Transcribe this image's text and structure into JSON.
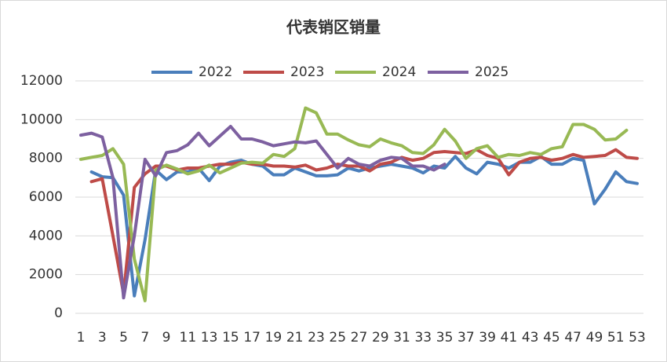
{
  "chart_data": {
    "type": "line",
    "title": "代表销区销量",
    "categories": [
      1,
      null,
      3,
      null,
      5,
      null,
      7,
      null,
      9,
      null,
      11,
      null,
      13,
      null,
      15,
      null,
      17,
      null,
      19,
      null,
      21,
      null,
      23,
      null,
      25,
      null,
      27,
      null,
      29,
      null,
      31,
      null,
      33,
      null,
      35,
      null,
      37,
      null,
      39,
      null,
      41,
      null,
      43,
      null,
      45,
      null,
      47,
      null,
      49,
      null,
      51,
      null,
      53
    ],
    "series": [
      {
        "name": "2022",
        "color": "#4a7ebb",
        "values": [
          null,
          7300,
          7050,
          7000,
          6100,
          900,
          3800,
          7400,
          6900,
          7300,
          7300,
          7500,
          6850,
          7600,
          7800,
          7900,
          7700,
          7600,
          7150,
          7150,
          7500,
          7300,
          7100,
          7100,
          7150,
          7500,
          7350,
          7500,
          7600,
          7700,
          7600,
          7500,
          7250,
          7600,
          7500,
          8100,
          7500,
          7200,
          7800,
          7700,
          7500,
          7800,
          7800,
          8100,
          7700,
          7700,
          8000,
          7900,
          5650,
          6400,
          7300,
          6800,
          6700
        ]
      },
      {
        "name": "2023",
        "color": "#be4b48",
        "values": [
          null,
          6800,
          6950,
          4000,
          1000,
          6500,
          7200,
          7600,
          7600,
          7400,
          7500,
          7500,
          7600,
          7700,
          7700,
          7800,
          7700,
          7700,
          7600,
          7600,
          7550,
          7650,
          7400,
          7500,
          7700,
          7600,
          7600,
          7350,
          7700,
          7800,
          8050,
          7900,
          8000,
          8300,
          8350,
          8300,
          8250,
          8450,
          8150,
          8000,
          7150,
          7800,
          8000,
          8050,
          7900,
          8000,
          8200,
          8050,
          8100,
          8150,
          8450,
          8050,
          8000
        ]
      },
      {
        "name": "2024",
        "color": "#98b954",
        "values": [
          7950,
          8050,
          8150,
          8500,
          7700,
          2800,
          650,
          7400,
          7650,
          7450,
          7200,
          7350,
          7650,
          7250,
          7500,
          7750,
          7800,
          7750,
          8200,
          8100,
          8500,
          10600,
          10350,
          9250,
          9250,
          8950,
          8700,
          8600,
          9000,
          8800,
          8650,
          8300,
          8250,
          8700,
          9500,
          8900,
          8000,
          8500,
          8650,
          8050,
          8200,
          8150,
          8300,
          8200,
          8500,
          8600,
          9750,
          9750,
          9500,
          8950,
          9000,
          9450,
          null
        ]
      },
      {
        "name": "2025",
        "color": "#7d60a0",
        "values": [
          9200,
          9300,
          9100,
          7000,
          800,
          4000,
          7950,
          7100,
          8300,
          8400,
          8700,
          9300,
          8650,
          9150,
          9650,
          9000,
          9000,
          8850,
          8650,
          8750,
          8850,
          8800,
          8900,
          8200,
          7500,
          8000,
          7700,
          7600,
          7900,
          8050,
          8000,
          7600,
          7600,
          7400,
          7700,
          null,
          null,
          null,
          null,
          null,
          null,
          null,
          null,
          null,
          null,
          null,
          null,
          null,
          null,
          null,
          null,
          null,
          null
        ]
      }
    ],
    "ylim": [
      0,
      12000
    ],
    "yticks": [
      0,
      2000,
      4000,
      6000,
      8000,
      10000,
      12000
    ],
    "grid": true,
    "legend": "top"
  }
}
